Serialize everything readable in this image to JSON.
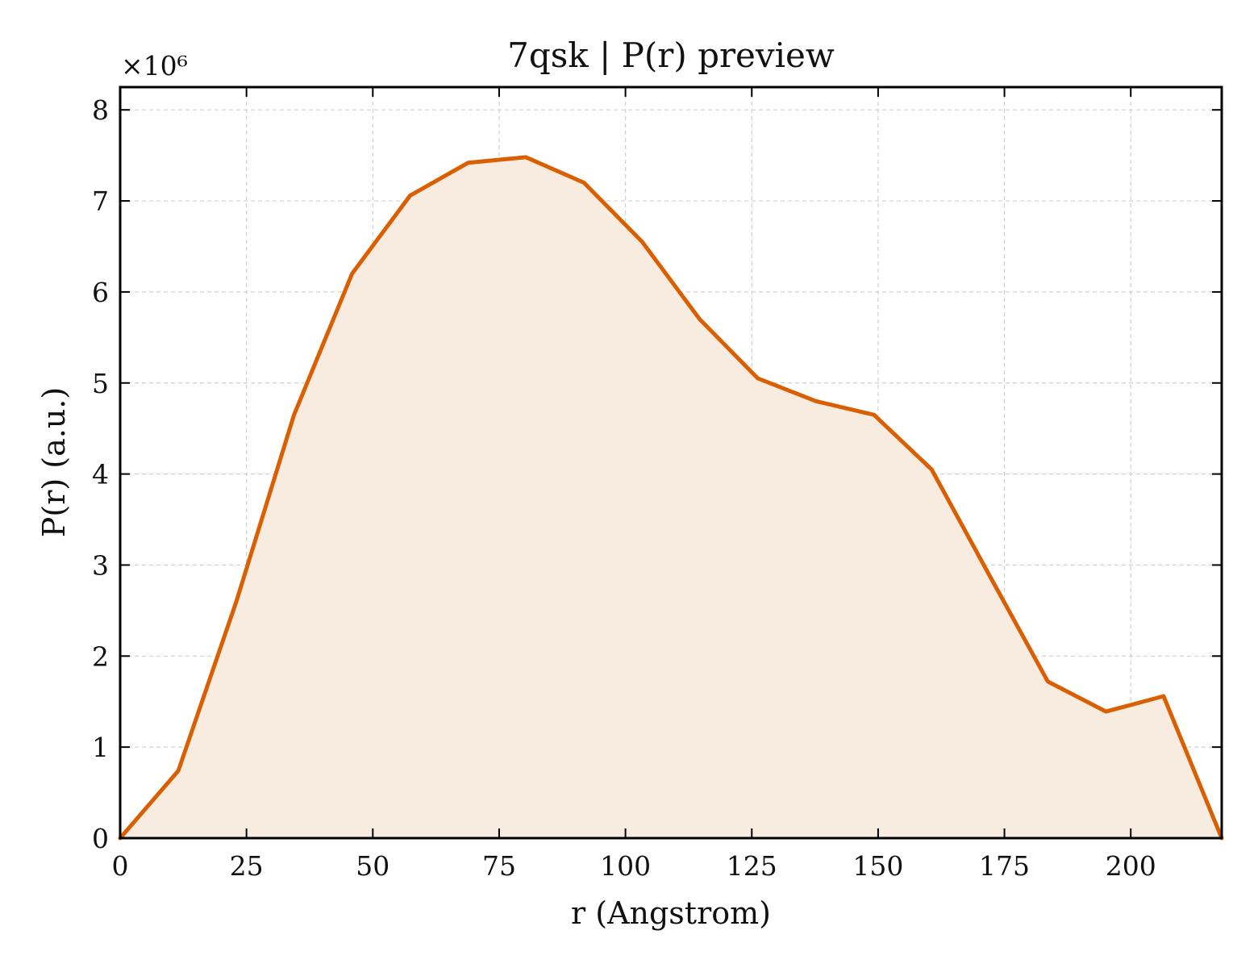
{
  "chart_data": {
    "type": "area",
    "title": "7qsk | P(r) preview",
    "xlabel": "r (Angstrom)",
    "ylabel": "P(r) (a.u.)",
    "y_multiplier": "×10⁶",
    "xlim": [
      0,
      218
    ],
    "ylim": [
      0,
      8.25
    ],
    "x_ticks": [
      0,
      25,
      50,
      75,
      100,
      125,
      150,
      175,
      200
    ],
    "y_ticks": [
      0,
      1,
      2,
      3,
      4,
      5,
      6,
      7,
      8
    ],
    "grid": true,
    "line_color": "#d95f02",
    "fill_color": "#f8ebe0",
    "series": [
      {
        "x": [
          0,
          11.5,
          23,
          34.4,
          45.9,
          57.4,
          68.9,
          80.3,
          91.8,
          103.3,
          114.7,
          126.2,
          137.7,
          149.2,
          160.6,
          172.1,
          183.6,
          195.1,
          206.5,
          218
        ],
        "values": [
          0,
          0.74,
          2.6,
          4.65,
          6.2,
          7.06,
          7.42,
          7.48,
          7.2,
          6.55,
          5.7,
          5.05,
          4.8,
          4.65,
          4.05,
          2.88,
          1.72,
          1.39,
          1.56,
          0
        ]
      }
    ]
  }
}
